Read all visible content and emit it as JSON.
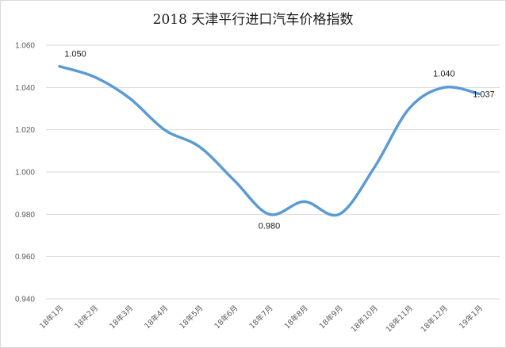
{
  "chart_data": {
    "type": "line",
    "title": "2018 天津平行进口汽车价格指数",
    "categories": [
      "18年1月",
      "18年2月",
      "18年3月",
      "18年4月",
      "18年5月",
      "18年6月",
      "18年7月",
      "18年8月",
      "18年9月",
      "18年10月",
      "18年11月",
      "18年12月",
      "19年1月"
    ],
    "series": [
      {
        "values": [
          1.05,
          1.045,
          1.035,
          1.02,
          1.012,
          0.996,
          0.98,
          0.986,
          0.98,
          1.002,
          1.03,
          1.04,
          1.037
        ]
      }
    ],
    "ylim": [
      0.94,
      1.06
    ],
    "yticks": [
      "0.940",
      "0.960",
      "0.980",
      "1.000",
      "1.020",
      "1.040",
      "1.060"
    ],
    "data_labels": [
      {
        "index": 0,
        "text": "1.050"
      },
      {
        "index": 6,
        "text": "0.980"
      },
      {
        "index": 11,
        "text": "1.040"
      },
      {
        "index": 12,
        "text": "1.037"
      }
    ],
    "grid": true,
    "legend": "none",
    "line_color": "#5b9bd5"
  }
}
